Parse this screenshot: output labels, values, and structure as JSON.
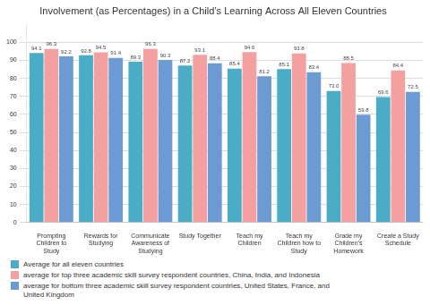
{
  "chart_data": {
    "type": "bar",
    "title": "Involvement (as Percentages) in a Child’s Learning Across All Eleven Countries",
    "categories": [
      "Prompting\nChildren to\nStudy",
      "Rewards for\nStudying",
      "Communicate\nAwareness of\nStudying",
      "Study Together",
      "Teach my\nChildren",
      "Teach my\nChildren how to\nStudy",
      "Grade my\nChildren’s\nHomework",
      "Create a Study\nSchedule"
    ],
    "series": [
      {
        "name": "Average for all eleven countries",
        "color": "#4BACC6",
        "values": [
          94.1,
          92.8,
          89.3,
          87.2,
          85.4,
          85.1,
          73.0,
          69.6
        ],
        "value_labels": [
          "94.1",
          "92.8",
          "89.3",
          "87.2",
          "85.4",
          "85.1",
          "73.0",
          "69.6"
        ]
      },
      {
        "name": "average for top three academic skill survey respondent countries, China, India, and Indonesia",
        "color": "#F4A0A0",
        "values": [
          96.3,
          94.5,
          96.3,
          93.1,
          94.6,
          93.8,
          88.5,
          84.4
        ],
        "value_labels": [
          "96.3",
          "94.5",
          "96.3",
          "93.1",
          "94.6",
          "93.8",
          "88.5",
          "84.4"
        ]
      },
      {
        "name": "average for bottom three academic skill survey respondent countries, United States, France, and\nUnited Kingdom",
        "color": "#6B9BD2",
        "values": [
          92.2,
          91.4,
          90.3,
          88.4,
          81.2,
          83.4,
          59.8,
          72.5
        ],
        "value_labels": [
          "92.2",
          "91.4",
          "90.3",
          "88.4",
          "81.2",
          "83.4",
          "59.8",
          "72.5"
        ]
      }
    ],
    "ylim": [
      0,
      110
    ],
    "yticks": [
      0,
      10,
      20,
      30,
      40,
      50,
      60,
      70,
      80,
      90,
      100
    ],
    "grid": true,
    "data_labels": true,
    "legend": "bottom"
  }
}
